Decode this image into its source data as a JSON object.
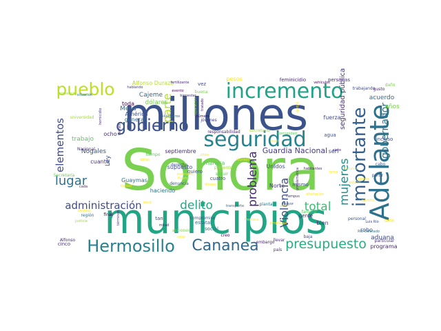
{
  "words": [
    {
      "text": "Sonora",
      "color": "#7ad151"
    },
    {
      "text": "millones",
      "color": "#3b528b"
    },
    {
      "text": "municipios",
      "color": "#21a585"
    },
    {
      "text": "incremento",
      "color": "#20a386"
    },
    {
      "text": "seguridad",
      "color": "#26838f"
    },
    {
      "text": "gobierno",
      "color": "#3b528b"
    },
    {
      "text": "Adelante",
      "color": "#2c728e"
    },
    {
      "text": "importante",
      "color": "#35608d"
    },
    {
      "text": "pueblo",
      "color": "#bddf26"
    },
    {
      "text": "Hermosillo",
      "color": "#26828e"
    },
    {
      "text": "Cananea",
      "color": "#31688e"
    },
    {
      "text": "presupuesto",
      "color": "#27ad81"
    },
    {
      "text": "administración",
      "color": "#3e4a89"
    },
    {
      "text": "delito",
      "color": "#22a884"
    },
    {
      "text": "lugar",
      "color": "#2c728e"
    },
    {
      "text": "total",
      "color": "#3fbc73"
    },
    {
      "text": "elementos",
      "color": "#3e4a89"
    },
    {
      "text": "mujeres",
      "color": "#21918c"
    },
    {
      "text": "problema",
      "color": "#482878"
    },
    {
      "text": "Violencia",
      "color": "#3b528b"
    },
    {
      "text": "gobernador",
      "color": "#2c728e"
    },
    {
      "text": "parte",
      "color": "#b5de2b"
    },
    {
      "text": "Guardia Nacional",
      "color": "#443983"
    },
    {
      "text": "seguridad pública",
      "color": "#472d7b"
    },
    {
      "text": "acuerdo",
      "color": "#31688e"
    },
    {
      "text": "años",
      "color": "#7ad151"
    },
    {
      "text": "aduana",
      "color": "#3e4a89"
    },
    {
      "text": "programa",
      "color": "#482878"
    },
    {
      "text": "particular",
      "color": "#46327e"
    },
    {
      "text": "Alfonso Durazo",
      "color": "#b5de2b"
    },
    {
      "text": "Cajeme",
      "color": "#31688e"
    },
    {
      "text": "dólares",
      "color": "#7ad151"
    },
    {
      "text": "Mesa",
      "color": "#31688e"
    },
    {
      "text": "América",
      "color": "#3b528b"
    },
    {
      "text": "toda",
      "color": "#440154"
    },
    {
      "text": "general",
      "color": "#31688e"
    },
    {
      "text": "trabajo",
      "color": "#5ec962"
    },
    {
      "text": "ocho",
      "color": "#472d7b"
    },
    {
      "text": "Nogales",
      "color": "#3b528b"
    },
    {
      "text": "cuanto",
      "color": "#46327e"
    },
    {
      "text": "septiembre",
      "color": "#472d7b"
    },
    {
      "text": "supuesto",
      "color": "#3e4a89"
    },
    {
      "text": "manera",
      "color": "#5ec962"
    },
    {
      "text": "Ley",
      "color": "#3b528b"
    },
    {
      "text": "Guaymas",
      "color": "#2c728e"
    },
    {
      "text": "Unidos",
      "color": "#3b528b"
    },
    {
      "text": "Norte",
      "color": "#46327e"
    },
    {
      "text": "mismo",
      "color": "#3b528b"
    },
    {
      "text": "gente",
      "color": "#482878"
    },
    {
      "text": "fuerza",
      "color": "#3e4a89"
    },
    {
      "text": "agua",
      "color": "#3b528b"
    },
    {
      "text": "seri",
      "color": "#3e4a89"
    },
    {
      "text": "bien",
      "color": "#472d7b"
    },
    {
      "text": "robo",
      "color": "#3b528b"
    },
    {
      "text": "final",
      "color": "#440154"
    },
    {
      "text": "tan",
      "color": "#3e4a89"
    },
    {
      "text": "estatal",
      "color": "#31688e"
    },
    {
      "text": "social",
      "color": "#2c728e"
    },
    {
      "text": "compromiso",
      "color": "#3b528b"
    },
    {
      "text": "cinco",
      "color": "#46327e"
    },
    {
      "text": "país",
      "color": "#46327e"
    },
    {
      "text": "pesos",
      "color": "#fde725"
    },
    {
      "text": "feminicidio",
      "color": "#482878"
    },
    {
      "text": "personas",
      "color": "#472d7b"
    },
    {
      "text": "trabajando",
      "color": "#3e4a89"
    },
    {
      "text": "vez",
      "color": "#3e4a89"
    },
    {
      "text": "jóvenes",
      "color": "#443983"
    },
    {
      "text": "tiempo",
      "color": "#5ec962"
    },
    {
      "text": "haciendo",
      "color": "#2c728e"
    },
    {
      "text": "responsabilidad",
      "color": "#482878"
    },
    {
      "text": "secretario",
      "color": "#a0da39"
    },
    {
      "text": "quiero",
      "color": "#3b528b"
    },
    {
      "text": "cuatro",
      "color": "#3e4a89"
    },
    {
      "text": "derecho",
      "color": "#3e4a89"
    },
    {
      "text": "denuncia",
      "color": "#3b528b"
    },
    {
      "text": "creo",
      "color": "#440154"
    },
    {
      "text": "embargo",
      "color": "#482878"
    },
    {
      "text": "Secretaría",
      "color": "#6ece58"
    },
    {
      "text": "Nacional",
      "color": "#472d7b"
    },
    {
      "text": "universidad",
      "color": "#a0da39"
    },
    {
      "text": "región",
      "color": "#2c728e"
    },
    {
      "text": "Alfonso",
      "color": "#482878"
    },
    {
      "text": "presencia",
      "color": "#a0da39"
    },
    {
      "text": "situación",
      "color": "#2c728e"
    },
    {
      "text": "hablando",
      "color": "#443983"
    },
    {
      "text": "fertilizante",
      "color": "#482878"
    },
    {
      "text": "bienestar",
      "color": "#46327e"
    },
    {
      "text": "evento",
      "color": "#440154"
    },
    {
      "text": "buena",
      "color": "#7ad151"
    },
    {
      "text": "kilómetros",
      "color": "#31688e"
    },
    {
      "text": "homicidio",
      "color": "#46327e"
    },
    {
      "text": "Pemex",
      "color": "#482878"
    },
    {
      "text": "reparación",
      "color": "#7ad151"
    },
    {
      "text": "tratado",
      "color": "#482878"
    },
    {
      "text": "vehículos",
      "color": "#440154"
    },
    {
      "text": "daño",
      "color": "#7ad151"
    },
    {
      "text": "gusto",
      "color": "#482878"
    },
    {
      "text": "incluso",
      "color": "#3e4a89"
    },
    {
      "text": "cabo",
      "color": "#3b528b"
    },
    {
      "text": "partir",
      "color": "#3b528b"
    },
    {
      "text": "familiar",
      "color": "#5ec962"
    },
    {
      "text": "personal",
      "color": "#3b528b"
    },
    {
      "text": "Luis Río",
      "color": "#3e4a89"
    },
    {
      "text": "Río Colorado",
      "color": "#2c728e"
    },
    {
      "text": "solo",
      "color": "#fde725"
    },
    {
      "text": "plan",
      "color": "#fde725"
    },
    {
      "text": "mitad",
      "color": "#482878"
    },
    {
      "text": "acciones",
      "color": "#7ad151"
    },
    {
      "text": "presente",
      "color": "#a0da39"
    },
    {
      "text": "seguir",
      "color": "#5ec962"
    },
    {
      "text": "transporte",
      "color": "#31688e"
    },
    {
      "text": "planta",
      "color": "#2c728e"
    },
    {
      "text": "llevar",
      "color": "#472d7b"
    },
    {
      "text": "baja",
      "color": "#3e4a89"
    },
    {
      "text": "habitantes",
      "color": "#482878"
    },
    {
      "text": "siete",
      "color": "#482878"
    },
    {
      "text": "cada",
      "color": "#482878"
    },
    {
      "text": "términos",
      "color": "#472d7b"
    },
    {
      "text": "caso",
      "color": "#fde725"
    },
    {
      "text": "sitios",
      "color": "#fde725"
    },
    {
      "text": "número",
      "color": "#440154"
    },
    {
      "text": "dinero",
      "color": "#fde725"
    },
    {
      "text": "campus",
      "color": "#472d7b"
    },
    {
      "text": "mayor",
      "color": "#3b528b"
    },
    {
      "text": "problemática",
      "color": "#482878"
    },
    {
      "text": "comunidad",
      "color": "#5ec962"
    },
    {
      "text": "apoyo",
      "color": "#fde725"
    },
    {
      "text": "agosto",
      "color": "#fde725"
    },
    {
      "text": "ejército",
      "color": "#fde725"
    },
    {
      "text": "destino",
      "color": "#fde725"
    },
    {
      "text": "justicia",
      "color": "#a0da39"
    },
    {
      "text": "obras",
      "color": "#fde725"
    },
    {
      "text": "reunión",
      "color": "#fde725"
    },
    {
      "text": "recursos",
      "color": "#fde725"
    },
    {
      "text": "inversión",
      "color": "#fde725"
    },
    {
      "text": "decir",
      "color": "#fde725"
    },
    {
      "text": "afectación",
      "color": "#fde725"
    },
    {
      "text": "frontera",
      "color": "#fde725"
    },
    {
      "text": "ciudad",
      "color": "#fde725"
    },
    {
      "text": "Puerto",
      "color": "#fde725"
    },
    {
      "text": "empresas",
      "color": "#fde725"
    },
    {
      "text": "estado",
      "color": "#fde725"
    },
    {
      "text": "nivel",
      "color": "#fde725"
    },
    {
      "text": "tema",
      "color": "#fde725"
    }
  ]
}
